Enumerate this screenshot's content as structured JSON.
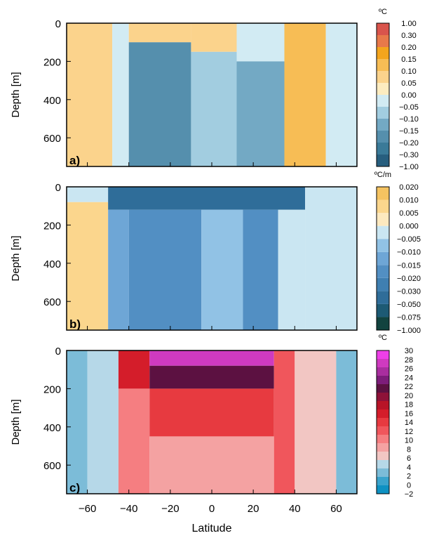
{
  "colors": {
    "panel_a": [
      "#275e7e",
      "#3a7a98",
      "#558fad",
      "#73a9c4",
      "#a2cde0",
      "#d2ebf3",
      "#fdecc0",
      "#fbd38c",
      "#f7bd55",
      "#f4a51d",
      "#e8794a",
      "#d9544c"
    ],
    "panel_b": [
      "#12433f",
      "#1d5a74",
      "#2f6d99",
      "#3f7fb1",
      "#528fc3",
      "#6ea6d6",
      "#91c2e5",
      "#cae6f2",
      "#fde9bf",
      "#fbd68d",
      "#f5c361"
    ],
    "panel_c": [
      "#0e91c2",
      "#3aa3cc",
      "#7cbcd8",
      "#b6d8e8",
      "#f2c6c3",
      "#f4a2a2",
      "#f57e81",
      "#f0565c",
      "#e73a40",
      "#d41d2a",
      "#b81427",
      "#8e1238",
      "#5c1141",
      "#7d1d7a",
      "#a92e9f",
      "#cf3ac0",
      "#ee3fe8"
    ]
  },
  "chart_data": [
    {
      "type": "heatmap",
      "panel_label": "a)",
      "ylabel": "Depth [m]",
      "xlabel": "",
      "xlim": [
        -70,
        70
      ],
      "ylim": [
        750,
        0
      ],
      "xticks": [
        -60,
        -40,
        -20,
        0,
        20,
        40,
        60
      ],
      "yticks": [
        0,
        200,
        400,
        600
      ],
      "colorbar_unit": "ºC",
      "colorbar_levels": [
        "1.00",
        "0.30",
        "0.20",
        "0.15",
        "0.10",
        "0.05",
        "0.00",
        "-0.05",
        "-0.10",
        "-0.15",
        "-0.20",
        "-0.30",
        "-1.00"
      ],
      "regions": [
        {
          "lat": [
            -70,
            -48
          ],
          "depth": [
            0,
            750
          ],
          "value": 0.05
        },
        {
          "lat": [
            -48,
            -40
          ],
          "depth": [
            0,
            750
          ],
          "value": -0.05
        },
        {
          "lat": [
            -40,
            -10
          ],
          "depth": [
            0,
            100
          ],
          "value": 0.05
        },
        {
          "lat": [
            -40,
            -10
          ],
          "depth": [
            100,
            750
          ],
          "value": -0.2
        },
        {
          "lat": [
            -10,
            12
          ],
          "depth": [
            0,
            150
          ],
          "value": 0.05
        },
        {
          "lat": [
            -10,
            12
          ],
          "depth": [
            150,
            750
          ],
          "value": -0.1
        },
        {
          "lat": [
            12,
            35
          ],
          "depth": [
            0,
            200
          ],
          "value": -0.05
        },
        {
          "lat": [
            12,
            35
          ],
          "depth": [
            200,
            750
          ],
          "value": -0.15
        },
        {
          "lat": [
            35,
            55
          ],
          "depth": [
            0,
            750
          ],
          "value": 0.1
        },
        {
          "lat": [
            55,
            70
          ],
          "depth": [
            0,
            750
          ],
          "value": -0.05
        }
      ]
    },
    {
      "type": "heatmap",
      "panel_label": "b)",
      "ylabel": "Depth [m]",
      "xlabel": "",
      "xlim": [
        -70,
        70
      ],
      "ylim": [
        750,
        0
      ],
      "xticks": [
        -60,
        -40,
        -20,
        0,
        20,
        40,
        60
      ],
      "yticks": [
        0,
        200,
        400,
        600
      ],
      "colorbar_unit": "ºC/m",
      "colorbar_levels": [
        "0.020",
        "0.010",
        "0.005",
        "0.000",
        "-0.005",
        "-0.010",
        "-0.015",
        "-0.020",
        "-0.030",
        "-0.050",
        "-0.075",
        "-1.000"
      ],
      "regions": [
        {
          "lat": [
            -70,
            -50
          ],
          "depth": [
            0,
            80
          ],
          "value": -0.005
        },
        {
          "lat": [
            -70,
            -50
          ],
          "depth": [
            80,
            750
          ],
          "value": 0.005
        },
        {
          "lat": [
            -50,
            45
          ],
          "depth": [
            0,
            120
          ],
          "value": -0.05
        },
        {
          "lat": [
            -50,
            -40
          ],
          "depth": [
            120,
            750
          ],
          "value": -0.015
        },
        {
          "lat": [
            -40,
            -5
          ],
          "depth": [
            120,
            750
          ],
          "value": -0.02
        },
        {
          "lat": [
            -5,
            15
          ],
          "depth": [
            120,
            750
          ],
          "value": -0.01
        },
        {
          "lat": [
            15,
            32
          ],
          "depth": [
            120,
            750
          ],
          "value": -0.02
        },
        {
          "lat": [
            32,
            45
          ],
          "depth": [
            120,
            750
          ],
          "value": -0.005
        },
        {
          "lat": [
            45,
            70
          ],
          "depth": [
            0,
            750
          ],
          "value": -0.005
        }
      ]
    },
    {
      "type": "heatmap",
      "panel_label": "c)",
      "ylabel": "Depth [m]",
      "xlabel": "Latitude",
      "xlim": [
        -70,
        70
      ],
      "ylim": [
        750,
        0
      ],
      "xticks": [
        -60,
        -40,
        -20,
        0,
        20,
        40,
        60
      ],
      "yticks": [
        0,
        200,
        400,
        600
      ],
      "colorbar_unit": "ºC",
      "colorbar_levels": [
        "30",
        "28",
        "26",
        "24",
        "22",
        "20",
        "18",
        "16",
        "14",
        "12",
        "10",
        "8",
        "6",
        "4",
        "2",
        "0",
        "-2"
      ],
      "regions": [
        {
          "lat": [
            -70,
            -60
          ],
          "depth": [
            0,
            750
          ],
          "value": 1
        },
        {
          "lat": [
            -60,
            -45
          ],
          "depth": [
            0,
            750
          ],
          "value": 3
        },
        {
          "lat": [
            -45,
            -30
          ],
          "depth": [
            0,
            200
          ],
          "value": 15
        },
        {
          "lat": [
            -45,
            -30
          ],
          "depth": [
            200,
            750
          ],
          "value": 9
        },
        {
          "lat": [
            -30,
            30
          ],
          "depth": [
            0,
            80
          ],
          "value": 27
        },
        {
          "lat": [
            -30,
            30
          ],
          "depth": [
            80,
            200
          ],
          "value": 20
        },
        {
          "lat": [
            -30,
            30
          ],
          "depth": [
            200,
            450
          ],
          "value": 13
        },
        {
          "lat": [
            -30,
            30
          ],
          "depth": [
            450,
            750
          ],
          "value": 7
        },
        {
          "lat": [
            30,
            40
          ],
          "depth": [
            0,
            750
          ],
          "value": 11
        },
        {
          "lat": [
            40,
            60
          ],
          "depth": [
            0,
            750
          ],
          "value": 5
        },
        {
          "lat": [
            60,
            70
          ],
          "depth": [
            0,
            750
          ],
          "value": 1
        }
      ]
    }
  ]
}
